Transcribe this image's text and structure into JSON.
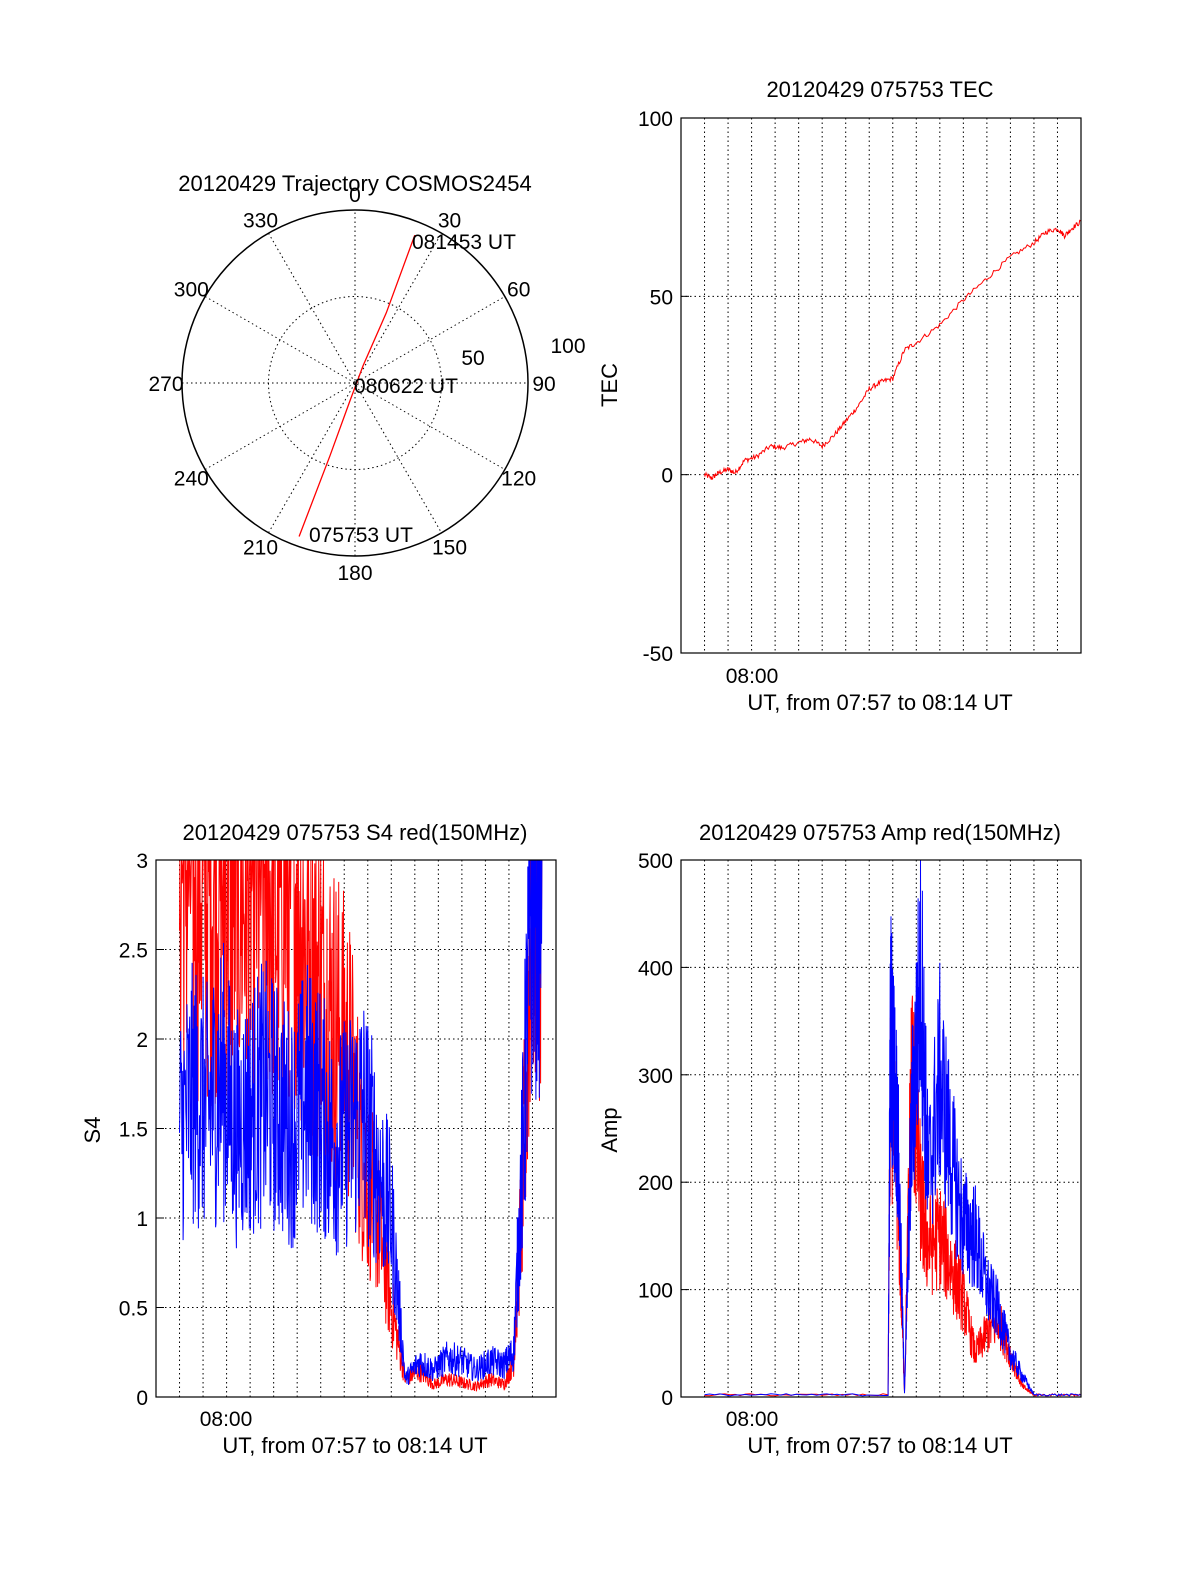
{
  "colors": {
    "red": "#ff0000",
    "blue": "#0000ff",
    "axes": "#000000"
  },
  "chart_data": [
    {
      "id": "trajectory",
      "type": "scatter",
      "title": "20120429 Trajectory COSMOS2454",
      "angle_labels": [
        "0",
        "30",
        "60",
        "90",
        "120",
        "150",
        "180",
        "210",
        "240",
        "270",
        "300",
        "330"
      ],
      "radial_labels": [
        "50",
        "100"
      ],
      "point_labels": {
        "start": "075753 UT",
        "middle": "080622 UT",
        "end": "081453 UT"
      },
      "series": [
        {
          "color": "red",
          "points": [
            {
              "azimuth": 200,
              "zenith": 85
            },
            {
              "azimuth": 199,
              "zenith": 40
            },
            {
              "azimuth": 196,
              "zenith": 10
            },
            {
              "azimuth": 25,
              "zenith": 10
            },
            {
              "azimuth": 24,
              "zenith": 40
            },
            {
              "azimuth": 22,
              "zenith": 83
            }
          ]
        }
      ]
    },
    {
      "id": "tec",
      "type": "line",
      "title": "20120429 075753 TEC",
      "ylabel": "TEC",
      "xlabel": "UT, from 07:57 to 08:14 UT",
      "x_tick_label": "08:00",
      "yticks": [
        "-50",
        "0",
        "50",
        "100"
      ],
      "ylim": [
        -50,
        100
      ],
      "xlim_minutes": [
        0,
        17
      ],
      "series": [
        {
          "color": "red",
          "x": [
            1.0,
            1.3,
            1.6,
            2.0,
            2.3,
            2.7,
            3.2,
            3.8,
            4.3,
            5.0,
            5.5,
            6.0,
            6.5,
            7.0,
            7.5,
            8.0,
            8.5,
            9.0,
            9.5,
            10.0,
            11.0,
            12.0,
            13.0,
            14.0,
            15.0,
            15.5,
            16.0,
            16.3,
            16.6,
            17.0
          ],
          "y": [
            0,
            -1,
            0.5,
            1.5,
            0.5,
            4,
            5,
            8,
            7.5,
            9,
            10,
            8,
            11,
            15,
            19,
            24,
            26,
            27,
            35,
            37,
            42,
            49,
            55,
            61,
            65,
            68,
            69,
            67,
            69,
            71
          ]
        }
      ]
    },
    {
      "id": "s4",
      "type": "line",
      "title": "20120429 075753 S4 red(150MHz)",
      "ylabel": "S4",
      "xlabel": "UT, from 07:57 to 08:14 UT",
      "x_tick_label": "08:00",
      "yticks": [
        "0",
        "0.5",
        "1",
        "1.5",
        "2",
        "2.5",
        "3"
      ],
      "ylim": [
        0,
        3
      ],
      "xlim_minutes": [
        0,
        17
      ],
      "series": [
        {
          "color": "red",
          "x": [
            1.0,
            1.6,
            2.2,
            2.8,
            3.4,
            4.0,
            4.6,
            5.2,
            5.8,
            6.4,
            7.0,
            7.6,
            8.2,
            8.8,
            9.4,
            10.0,
            10.6,
            11.2,
            11.8,
            12.4,
            13.0,
            13.6,
            14.2,
            14.8,
            15.2,
            15.6,
            16.0,
            16.4
          ],
          "y": [
            3.0,
            3.0,
            2.9,
            3.0,
            2.8,
            2.9,
            3.0,
            2.7,
            3.0,
            2.5,
            2.3,
            2.1,
            1.9,
            1.3,
            1.0,
            0.5,
            0.1,
            0.15,
            0.07,
            0.1,
            0.08,
            0.06,
            0.1,
            0.07,
            0.2,
            1.2,
            3.0,
            3.0
          ]
        },
        {
          "color": "blue",
          "x": [
            1.0,
            1.6,
            2.2,
            2.8,
            3.4,
            4.0,
            4.6,
            5.2,
            5.8,
            6.4,
            7.0,
            7.6,
            8.2,
            8.8,
            9.4,
            10.0,
            10.6,
            11.2,
            11.8,
            12.4,
            13.0,
            13.6,
            14.2,
            14.8,
            15.2,
            15.6,
            16.0,
            16.4
          ],
          "y": [
            1.5,
            1.7,
            1.6,
            1.8,
            1.5,
            1.6,
            1.7,
            1.6,
            1.5,
            1.7,
            1.6,
            1.4,
            1.5,
            1.6,
            1.3,
            1.0,
            0.1,
            0.2,
            0.15,
            0.22,
            0.2,
            0.15,
            0.2,
            0.18,
            0.25,
            1.4,
            3.0,
            3.0
          ]
        }
      ]
    },
    {
      "id": "amp",
      "type": "line",
      "title": "20120429 075753 Amp red(150MHz)",
      "ylabel": "Amp",
      "xlabel": "UT, from 07:57 to 08:14 UT",
      "x_tick_label": "08:00",
      "yticks": [
        "0",
        "100",
        "200",
        "300",
        "400",
        "500"
      ],
      "ylim": [
        0,
        500
      ],
      "xlim_minutes": [
        0,
        17
      ],
      "series": [
        {
          "color": "red",
          "x": [
            1.0,
            8.8,
            8.9,
            9.2,
            9.5,
            9.8,
            10.2,
            10.5,
            11.0,
            11.5,
            12.0,
            12.5,
            13.0,
            13.5,
            14.0,
            14.5,
            15.0,
            17.0
          ],
          "y": [
            2,
            2,
            300,
            200,
            5,
            310,
            180,
            140,
            150,
            120,
            90,
            40,
            60,
            70,
            40,
            10,
            2,
            2
          ]
        },
        {
          "color": "blue",
          "x": [
            1.0,
            8.8,
            8.9,
            9.2,
            9.5,
            9.8,
            10.2,
            10.5,
            11.0,
            11.5,
            12.0,
            12.5,
            13.0,
            13.5,
            14.0,
            14.5,
            15.0,
            17.0
          ],
          "y": [
            2,
            2,
            350,
            250,
            5,
            250,
            400,
            200,
            300,
            220,
            160,
            150,
            100,
            80,
            40,
            20,
            2,
            2
          ]
        }
      ]
    }
  ]
}
